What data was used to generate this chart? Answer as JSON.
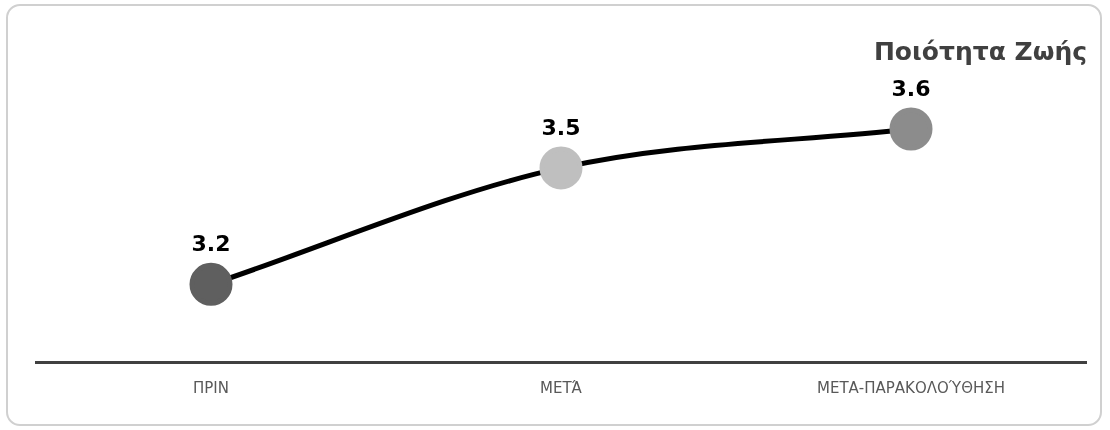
{
  "chart_data": {
    "type": "line",
    "title": "Ποιότητα Ζωής",
    "categories": [
      "ΠΡΙΝ",
      "ΜΕΤΆ",
      "ΜΕΤΑ-ΠΑΡΑΚΟΛΟΎΘΗΣΗ"
    ],
    "series": [
      {
        "color": "#000000",
        "colors": [
          "#5f5f5f",
          "#bfbfbf",
          "#8c8c8c"
        ],
        "values": [
          3.2,
          3.5,
          3.6
        ]
      }
    ],
    "data_labels": true,
    "marker": "circle",
    "line_style": "solid",
    "grid": false,
    "legend": false,
    "tick_labels": "x"
  }
}
